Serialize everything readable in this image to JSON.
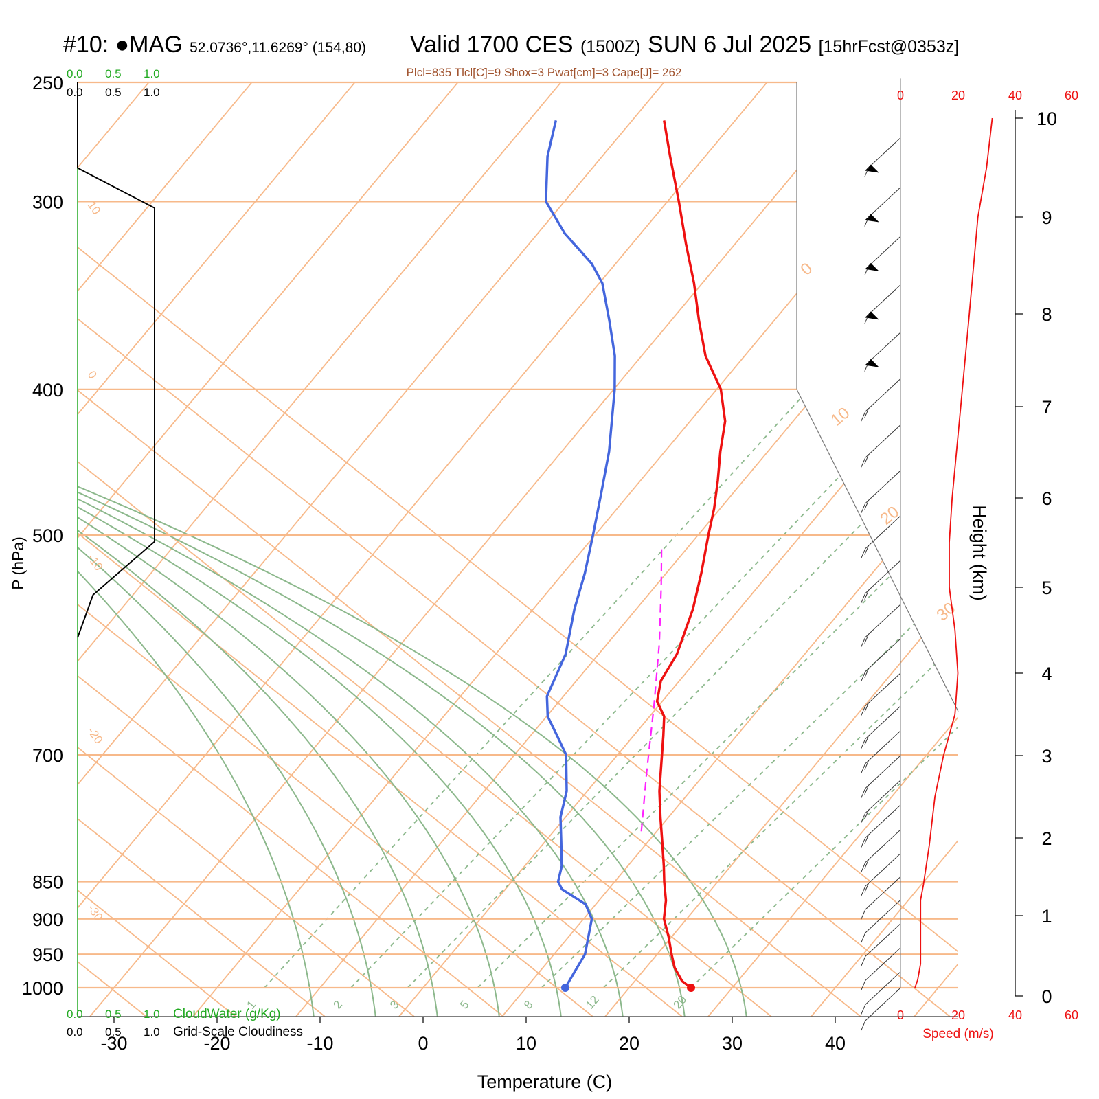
{
  "header": {
    "site": "#10: ●MAG",
    "coords": "52.0736°,11.6269° (154,80)",
    "valid": "Valid 1700 CES",
    "zulu": "(1500Z)",
    "date": "SUN 6 Jul 2025",
    "forecast": "[15hrFcst@0353z]",
    "indices": "Plcl=835 Tlcl[C]=9 Shox=3 Pwat[cm]=3 Cape[J]= 262"
  },
  "colors": {
    "temperature": "#ee1111",
    "dewpoint": "#4466dd",
    "parcel": "#ff22ff",
    "isotherm": "#f7b98a",
    "adiabat": "#8cb88c",
    "cloudwater": "#22aa22",
    "cloudiness": "#000000",
    "speed": "#ee1111"
  },
  "labels": {
    "cloud_ticks": [
      "0.0",
      "0.5",
      "1.0"
    ],
    "cloudwater": "CloudWater (g/Kg)",
    "cloudiness": "Grid-Scale Cloudiness",
    "speed_ticks": [
      "0",
      "20",
      "40",
      "60"
    ],
    "speed": "Speed (m/s)",
    "p_axis": "P (hPa)",
    "height_axis": "Height (km)",
    "t_axis": "Temperature (C)"
  },
  "chart_data": {
    "type": "line",
    "pressure_levels_hPa": [
      250,
      300,
      400,
      500,
      700,
      850,
      900,
      950,
      1000
    ],
    "temperature_ticks_C": [
      -30,
      -20,
      -10,
      0,
      10,
      20,
      30,
      40
    ],
    "height_ticks_km": [
      0,
      1,
      2,
      3,
      4,
      5,
      6,
      7,
      8,
      9,
      10
    ],
    "isotherm_labels": [
      "10",
      "0",
      "-10",
      "-20",
      "-30",
      "0",
      "10",
      "20",
      "30"
    ],
    "mixing_ratio_labels": [
      "1",
      "2",
      "3",
      "5",
      "8",
      "12",
      "20"
    ],
    "temperature_profile": [
      {
        "p": 1000,
        "t": 26.0
      },
      {
        "p": 990,
        "t": 24.6
      },
      {
        "p": 970,
        "t": 22.8
      },
      {
        "p": 950,
        "t": 21.4
      },
      {
        "p": 925,
        "t": 19.7
      },
      {
        "p": 900,
        "t": 17.8
      },
      {
        "p": 875,
        "t": 16.5
      },
      {
        "p": 850,
        "t": 14.8
      },
      {
        "p": 830,
        "t": 13.5
      },
      {
        "p": 800,
        "t": 11.4
      },
      {
        "p": 770,
        "t": 9.2
      },
      {
        "p": 740,
        "t": 7.0
      },
      {
        "p": 700,
        "t": 4.3
      },
      {
        "p": 680,
        "t": 2.9
      },
      {
        "p": 660,
        "t": 1.4
      },
      {
        "p": 645,
        "t": -0.5
      },
      {
        "p": 625,
        "t": -1.8
      },
      {
        "p": 600,
        "t": -2.4
      },
      {
        "p": 560,
        "t": -4.5
      },
      {
        "p": 530,
        "t": -6.6
      },
      {
        "p": 500,
        "t": -9.0
      },
      {
        "p": 480,
        "t": -10.6
      },
      {
        "p": 460,
        "t": -12.5
      },
      {
        "p": 440,
        "t": -14.6
      },
      {
        "p": 420,
        "t": -16.6
      },
      {
        "p": 400,
        "t": -19.6
      },
      {
        "p": 380,
        "t": -23.8
      },
      {
        "p": 360,
        "t": -27.3
      },
      {
        "p": 340,
        "t": -30.8
      },
      {
        "p": 320,
        "t": -34.8
      },
      {
        "p": 300,
        "t": -38.9
      },
      {
        "p": 280,
        "t": -43.4
      },
      {
        "p": 265,
        "t": -46.9
      }
    ],
    "dewpoint_profile": [
      {
        "p": 1000,
        "t": 13.8
      },
      {
        "p": 950,
        "t": 13.0
      },
      {
        "p": 900,
        "t": 10.8
      },
      {
        "p": 880,
        "t": 9.0
      },
      {
        "p": 860,
        "t": 5.5
      },
      {
        "p": 850,
        "t": 4.5
      },
      {
        "p": 830,
        "t": 3.6
      },
      {
        "p": 800,
        "t": 1.6
      },
      {
        "p": 770,
        "t": -0.5
      },
      {
        "p": 740,
        "t": -2.0
      },
      {
        "p": 700,
        "t": -5.0
      },
      {
        "p": 680,
        "t": -7.4
      },
      {
        "p": 660,
        "t": -9.9
      },
      {
        "p": 640,
        "t": -11.6
      },
      {
        "p": 600,
        "t": -13.2
      },
      {
        "p": 560,
        "t": -16.0
      },
      {
        "p": 530,
        "t": -17.9
      },
      {
        "p": 500,
        "t": -20.2
      },
      {
        "p": 470,
        "t": -22.7
      },
      {
        "p": 440,
        "t": -25.4
      },
      {
        "p": 420,
        "t": -27.6
      },
      {
        "p": 400,
        "t": -29.9
      },
      {
        "p": 380,
        "t": -32.6
      },
      {
        "p": 360,
        "t": -36.0
      },
      {
        "p": 340,
        "t": -39.7
      },
      {
        "p": 330,
        "t": -42.3
      },
      {
        "p": 315,
        "t": -47.4
      },
      {
        "p": 300,
        "t": -51.8
      },
      {
        "p": 280,
        "t": -55.3
      },
      {
        "p": 265,
        "t": -57.4
      }
    ],
    "parcel_profile": [
      {
        "p": 787,
        "t": 8.5
      },
      {
        "p": 720,
        "t": 4.3
      },
      {
        "p": 650,
        "t": -0.4
      },
      {
        "p": 590,
        "t": -5.0
      },
      {
        "p": 540,
        "t": -9.5
      },
      {
        "p": 508,
        "t": -12.7
      }
    ],
    "cloudiness_profile": [
      {
        "p": 250,
        "c": 0.0
      },
      {
        "p": 285,
        "c": 0.0
      },
      {
        "p": 303,
        "c": 1.0
      },
      {
        "p": 505,
        "c": 1.0
      },
      {
        "p": 548,
        "c": 0.2
      },
      {
        "p": 585,
        "c": 0.0
      }
    ],
    "wind_speed_profile": [
      {
        "z": 0.1,
        "v": 5
      },
      {
        "z": 0.2,
        "v": 6
      },
      {
        "z": 0.4,
        "v": 7
      },
      {
        "z": 0.8,
        "v": 7
      },
      {
        "z": 1.2,
        "v": 7
      },
      {
        "z": 1.4,
        "v": 8
      },
      {
        "z": 1.9,
        "v": 10
      },
      {
        "z": 2.5,
        "v": 12
      },
      {
        "z": 3.0,
        "v": 15
      },
      {
        "z": 3.5,
        "v": 19
      },
      {
        "z": 4.0,
        "v": 20
      },
      {
        "z": 4.5,
        "v": 19
      },
      {
        "z": 5.0,
        "v": 17
      },
      {
        "z": 5.5,
        "v": 17
      },
      {
        "z": 6.0,
        "v": 18
      },
      {
        "z": 7.0,
        "v": 21
      },
      {
        "z": 8.0,
        "v": 24
      },
      {
        "z": 9.0,
        "v": 27
      },
      {
        "z": 9.5,
        "v": 30
      },
      {
        "z": 10.0,
        "v": 32
      }
    ],
    "wind_barbs": [
      {
        "z": 9.8,
        "v": 30
      },
      {
        "z": 9.3,
        "v": 30
      },
      {
        "z": 8.8,
        "v": 30
      },
      {
        "z": 8.3,
        "v": 30
      },
      {
        "z": 7.8,
        "v": 30
      },
      {
        "z": 7.3,
        "v": 15
      },
      {
        "z": 6.8,
        "v": 20
      },
      {
        "z": 6.3,
        "v": 20
      },
      {
        "z": 5.8,
        "v": 20
      },
      {
        "z": 5.3,
        "v": 20
      },
      {
        "z": 4.8,
        "v": 20
      },
      {
        "z": 4.4,
        "v": 20
      },
      {
        "z": 4.0,
        "v": 20
      },
      {
        "z": 3.6,
        "v": 20
      },
      {
        "z": 3.3,
        "v": 20
      },
      {
        "z": 3.0,
        "v": 20
      },
      {
        "z": 2.7,
        "v": 20
      },
      {
        "z": 2.4,
        "v": 20
      },
      {
        "z": 2.1,
        "v": 20
      },
      {
        "z": 1.8,
        "v": 15
      },
      {
        "z": 1.5,
        "v": 10
      },
      {
        "z": 1.2,
        "v": 10
      },
      {
        "z": 0.9,
        "v": 10
      },
      {
        "z": 0.6,
        "v": 10
      },
      {
        "z": 0.3,
        "v": 10
      },
      {
        "z": 0.1,
        "v": 5
      }
    ],
    "xlim": [
      -35,
      45
    ],
    "plim": [
      1050,
      250
    ],
    "zlim": [
      0,
      10.4
    ],
    "speed_lim": [
      0,
      40
    ]
  }
}
